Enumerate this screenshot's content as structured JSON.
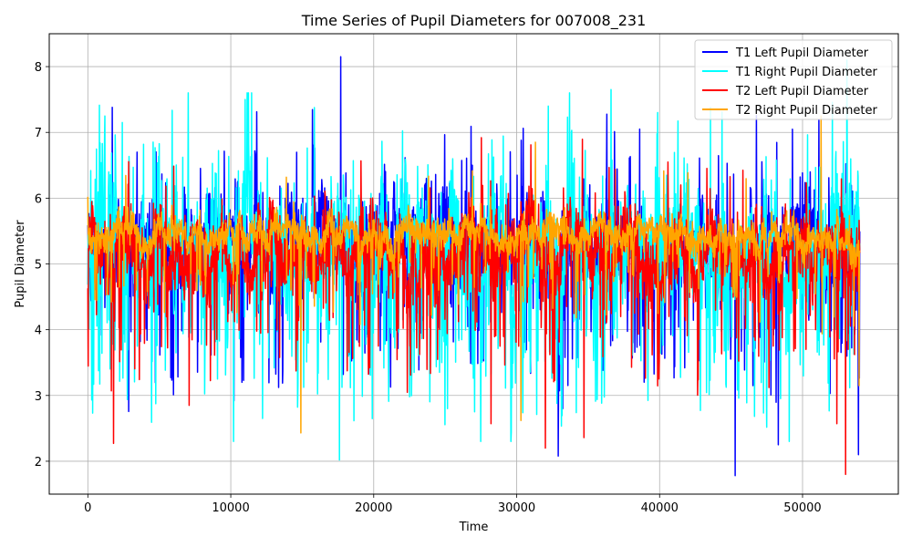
{
  "chart_data": {
    "type": "line",
    "title": "Time Series of Pupil Diameters for 007008_231",
    "xlabel": "Time",
    "ylabel": "Pupil Diameter",
    "xlim": [
      -2700,
      56700
    ],
    "ylim": [
      1.5,
      8.5
    ],
    "x_ticks": [
      0,
      10000,
      20000,
      30000,
      40000,
      50000
    ],
    "y_ticks": [
      2,
      3,
      4,
      5,
      6,
      7,
      8
    ],
    "grid": true,
    "legend_position": "top-right",
    "x_range": [
      0,
      54000
    ],
    "series": [
      {
        "name": "T1 Left Pupil Diameter",
        "color": "#0000ff",
        "mean": 5.3,
        "spread": 0.45,
        "dip_prob": 0.1,
        "dip_depth": 1.4,
        "spike_prob": 0.04,
        "seed": 11,
        "extremes": [
          [
            17700,
            8.15
          ],
          [
            45300,
            1.78
          ],
          [
            32900,
            2.08
          ],
          [
            48300,
            2.25
          ],
          [
            1700,
            7.38
          ],
          [
            38600,
            7.05
          ],
          [
            53900,
            2.1
          ]
        ]
      },
      {
        "name": "T1 Right Pupil Diameter",
        "color": "#00ffff",
        "mean": 5.2,
        "spread": 0.6,
        "dip_prob": 0.12,
        "dip_depth": 1.6,
        "spike_prob": 0.06,
        "seed": 23,
        "extremes": [
          [
            17600,
            2.02
          ],
          [
            11000,
            7.5
          ],
          [
            53100,
            8.1
          ],
          [
            36600,
            7.65
          ],
          [
            1200,
            7.25
          ],
          [
            32200,
            7.4
          ],
          [
            2400,
            7.15
          ]
        ]
      },
      {
        "name": "T2 Left Pupil Diameter",
        "color": "#ff0000",
        "mean": 5.15,
        "spread": 0.4,
        "dip_prob": 0.08,
        "dip_depth": 1.2,
        "spike_prob": 0.02,
        "seed": 37,
        "extremes": [
          [
            1800,
            2.27
          ],
          [
            32000,
            2.2
          ],
          [
            53000,
            1.8
          ],
          [
            7100,
            2.85
          ],
          [
            34700,
            2.36
          ],
          [
            52400,
            2.57
          ],
          [
            28200,
            2.57
          ]
        ]
      },
      {
        "name": "T2 Right Pupil Diameter",
        "color": "#ffa500",
        "mean": 5.45,
        "spread": 0.18,
        "dip_prob": 0.04,
        "dip_depth": 0.9,
        "spike_prob": 0.01,
        "seed": 53,
        "extremes": [
          [
            14900,
            2.43
          ],
          [
            30300,
            2.62
          ],
          [
            51300,
            7.25
          ],
          [
            31300,
            6.85
          ],
          [
            0,
            6.02
          ],
          [
            53950,
            3.15
          ]
        ]
      }
    ]
  }
}
